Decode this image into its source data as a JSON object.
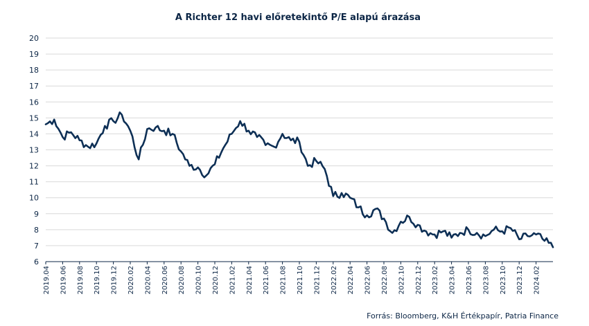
{
  "chart_data": {
    "type": "line",
    "title": "A Richter 12 havi előretekintő P/E alapú árazása",
    "source": "Forrás: Bloomberg, K&H Értékpapír, Patria Finance",
    "xlabel": "",
    "ylabel": "",
    "ylim": [
      6,
      20
    ],
    "yticks": [
      6,
      7,
      8,
      9,
      10,
      11,
      12,
      13,
      14,
      15,
      16,
      17,
      18,
      19,
      20
    ],
    "grid": true,
    "x_ticks": [
      "2019.04",
      "2019.06",
      "2019.08",
      "2019.10",
      "2019.12",
      "2020.02",
      "2020.04",
      "2020.06",
      "2020.08",
      "2020.10",
      "2020.12",
      "2021.02",
      "2021.04",
      "2021.06",
      "2021.08",
      "2021.10",
      "2021.12",
      "2022.02",
      "2022.04",
      "2022.06",
      "2022.08",
      "2022.10",
      "2022.12",
      "2023.02",
      "2023.04",
      "2023.06",
      "2023.08",
      "2023.10",
      "2023.12",
      "2024.02"
    ],
    "series": [
      {
        "name": "",
        "color": "#0d2f55",
        "points": [
          [
            "2019.04",
            14.6
          ],
          [
            "2019.05",
            14.9
          ],
          [
            "2019.06",
            13.8
          ],
          [
            "2019.07",
            14.1
          ],
          [
            "2019.08",
            13.6
          ],
          [
            "2019.09",
            13.2
          ],
          [
            "2019.10",
            13.4
          ],
          [
            "2019.11",
            14.5
          ],
          [
            "2019.12",
            14.8
          ],
          [
            "2020.01",
            15.2
          ],
          [
            "2020.02",
            14.2
          ],
          [
            "2020.03",
            12.4
          ],
          [
            "2020.04",
            14.3
          ],
          [
            "2020.05",
            14.4
          ],
          [
            "2020.06",
            14.2
          ],
          [
            "2020.07",
            14.0
          ],
          [
            "2020.08",
            12.9
          ],
          [
            "2020.09",
            12.0
          ],
          [
            "2020.10",
            11.9
          ],
          [
            "2020.11",
            11.4
          ],
          [
            "2020.12",
            12.1
          ],
          [
            "2021.01",
            13.1
          ],
          [
            "2021.02",
            14.0
          ],
          [
            "2021.03",
            14.8
          ],
          [
            "2021.04",
            14.2
          ],
          [
            "2021.05",
            13.8
          ],
          [
            "2021.06",
            13.3
          ],
          [
            "2021.07",
            13.2
          ],
          [
            "2021.08",
            14.0
          ],
          [
            "2021.09",
            13.6
          ],
          [
            "2021.10",
            13.5
          ],
          [
            "2021.11",
            12.0
          ],
          [
            "2021.12",
            12.3
          ],
          [
            "2022.01",
            11.8
          ],
          [
            "2022.02",
            10.1
          ],
          [
            "2022.03",
            10.3
          ],
          [
            "2022.04",
            10.0
          ],
          [
            "2022.05",
            9.4
          ],
          [
            "2022.06",
            8.9
          ],
          [
            "2022.07",
            9.3
          ],
          [
            "2022.08",
            8.7
          ],
          [
            "2022.09",
            7.8
          ],
          [
            "2022.10",
            8.5
          ],
          [
            "2022.11",
            8.8
          ],
          [
            "2022.12",
            8.3
          ],
          [
            "2023.01",
            7.9
          ],
          [
            "2023.02",
            7.7
          ],
          [
            "2023.03",
            7.9
          ],
          [
            "2023.04",
            7.5
          ],
          [
            "2023.05",
            7.8
          ],
          [
            "2023.06",
            8.0
          ],
          [
            "2023.07",
            7.8
          ],
          [
            "2023.08",
            7.6
          ],
          [
            "2023.09",
            8.0
          ],
          [
            "2023.10",
            7.9
          ],
          [
            "2023.11",
            8.1
          ],
          [
            "2023.12",
            7.4
          ],
          [
            "2024.01",
            7.6
          ],
          [
            "2024.02",
            7.7
          ],
          [
            "2024.03",
            7.3
          ],
          [
            "2024.04",
            6.9
          ]
        ]
      }
    ]
  }
}
